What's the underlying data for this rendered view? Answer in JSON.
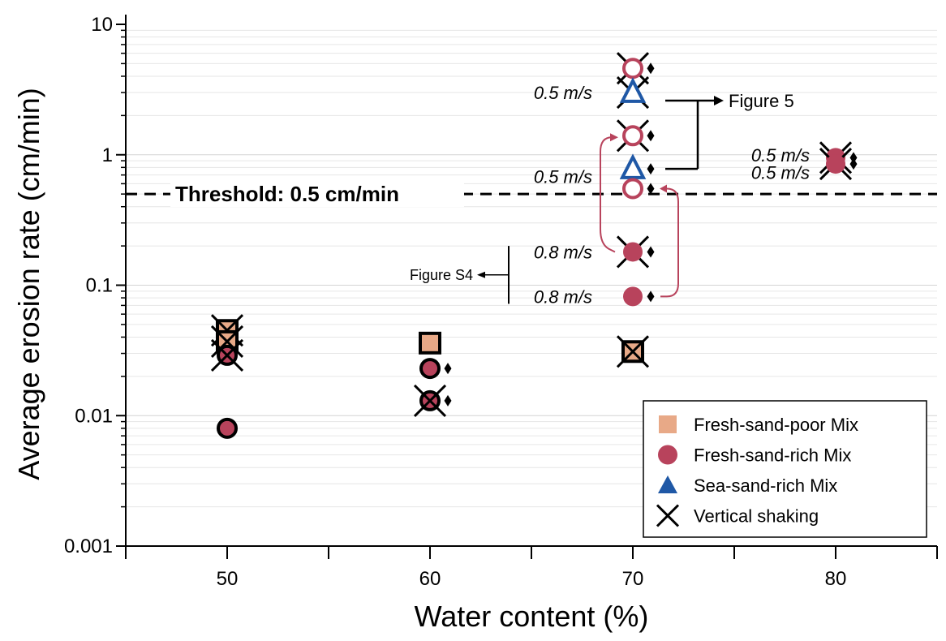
{
  "chart_data": {
    "type": "scatter",
    "xlabel": "Water content (%)",
    "ylabel": "Average erosion rate (cm/min)",
    "xlim": [
      45,
      85
    ],
    "ylim": [
      0.001,
      10
    ],
    "yscale": "log",
    "x_ticks": [
      50,
      60,
      70,
      80
    ],
    "y_ticks": [
      {
        "value": 0.001,
        "label": "0.001"
      },
      {
        "value": 0.01,
        "label": "0.01"
      },
      {
        "value": 0.1,
        "label": "0.1"
      },
      {
        "value": 1,
        "label": "1"
      },
      {
        "value": 10,
        "label": "10"
      }
    ],
    "grid": "horizontal minor lines",
    "threshold": {
      "value": 0.5,
      "label": "Threshold: 0.5 cm/min"
    },
    "legend": {
      "position": "bottom-right",
      "entries": [
        {
          "label": "Fresh-sand-poor Mix",
          "marker": "square",
          "color": "#E8A987"
        },
        {
          "label": "Fresh-sand-rich Mix",
          "marker": "circle",
          "color": "#B8435C"
        },
        {
          "label": "Sea-sand-rich Mix",
          "marker": "triangle",
          "color": "#1F58A6"
        },
        {
          "label": "Vertical shaking",
          "marker": "x",
          "color": "#000000"
        }
      ]
    },
    "points": [
      {
        "x": 50,
        "y": 0.045,
        "mix": "Fresh-sand-poor Mix",
        "outline": true,
        "shaking": true
      },
      {
        "x": 50,
        "y": 0.037,
        "mix": "Fresh-sand-poor Mix",
        "outline": true,
        "shaking": true
      },
      {
        "x": 50,
        "y": 0.029,
        "mix": "Fresh-sand-rich Mix",
        "outline": true,
        "shaking": true
      },
      {
        "x": 50,
        "y": 0.008,
        "mix": "Fresh-sand-rich Mix",
        "outline": true,
        "shaking": false
      },
      {
        "x": 60,
        "y": 0.036,
        "mix": "Fresh-sand-poor Mix",
        "outline": true,
        "shaking": false
      },
      {
        "x": 60,
        "y": 0.023,
        "mix": "Fresh-sand-rich Mix",
        "outline": true,
        "shaking": false,
        "diamond": true
      },
      {
        "x": 60,
        "y": 0.013,
        "mix": "Fresh-sand-rich Mix",
        "outline": true,
        "shaking": true,
        "diamond": true
      },
      {
        "x": 70,
        "y": 0.031,
        "mix": "Fresh-sand-poor Mix",
        "outline": true,
        "shaking": true
      },
      {
        "x": 70,
        "y": 4.6,
        "mix": "Fresh-sand-rich Mix",
        "hollow": true,
        "shaking": true,
        "diamond": true
      },
      {
        "x": 70,
        "y": 3.0,
        "mix": "Sea-sand-rich Mix",
        "hollow": true,
        "shaking": true
      },
      {
        "x": 70,
        "y": 1.4,
        "mix": "Fresh-sand-rich Mix",
        "hollow": true,
        "shaking": true,
        "diamond": true
      },
      {
        "x": 70,
        "y": 0.78,
        "mix": "Sea-sand-rich Mix",
        "hollow": true,
        "shaking": false,
        "diamond": true
      },
      {
        "x": 70,
        "y": 0.55,
        "mix": "Fresh-sand-rich Mix",
        "hollow": true,
        "shaking": false,
        "diamond": true
      },
      {
        "x": 70,
        "y": 0.18,
        "mix": "Fresh-sand-rich Mix",
        "shaking": true,
        "diamond": true
      },
      {
        "x": 70,
        "y": 0.082,
        "mix": "Fresh-sand-rich Mix",
        "shaking": false,
        "diamond": true
      },
      {
        "x": 80,
        "y": 0.95,
        "mix": "Fresh-sand-rich Mix",
        "shaking": true,
        "diamond": true
      },
      {
        "x": 80,
        "y": 0.85,
        "mix": "Fresh-sand-rich Mix",
        "shaking": true,
        "diamond": true
      }
    ],
    "annotations": {
      "speed_labels": [
        "0.5 m/s",
        "0.5 m/s",
        "0.8 m/s",
        "0.8 m/s",
        "0.5 m/s",
        "0.5 m/s"
      ],
      "figure5": "Figure 5",
      "figureS4": "Figure S4"
    }
  }
}
